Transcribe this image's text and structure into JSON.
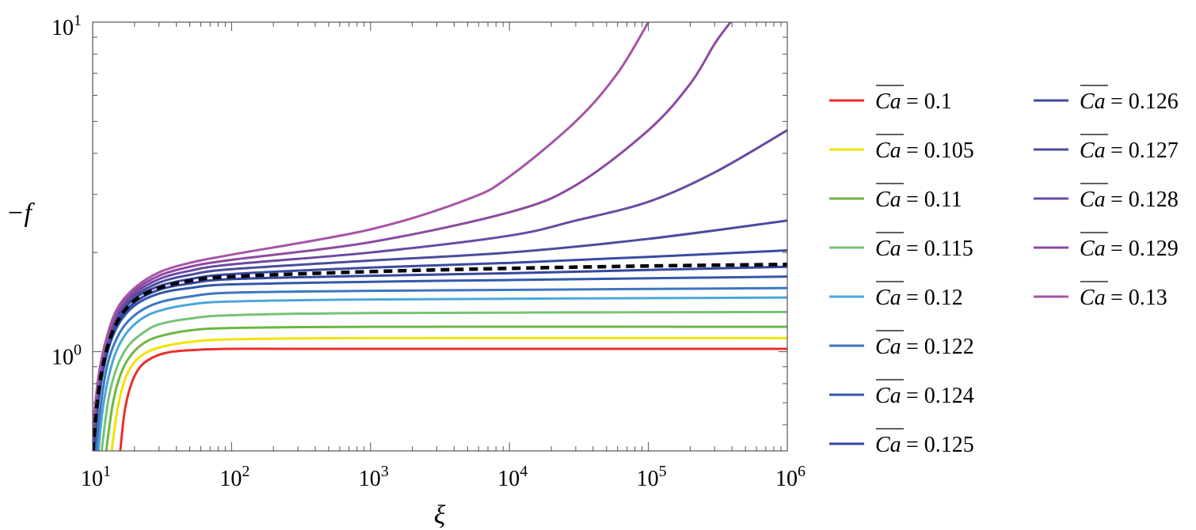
{
  "chart_data": {
    "type": "line",
    "title": "",
    "xlabel": "ξ",
    "ylabel": "−f",
    "xscale": "log",
    "yscale": "log",
    "xlim": [
      10,
      1000000
    ],
    "ylim": [
      0.5,
      10
    ],
    "x_ticks": [
      {
        "value": 10,
        "base": "10",
        "exp": "1"
      },
      {
        "value": 100,
        "base": "10",
        "exp": "2"
      },
      {
        "value": 1000,
        "base": "10",
        "exp": "3"
      },
      {
        "value": 10000,
        "base": "10",
        "exp": "4"
      },
      {
        "value": 100000,
        "base": "10",
        "exp": "5"
      },
      {
        "value": 1000000,
        "base": "10",
        "exp": "6"
      }
    ],
    "y_ticks": [
      {
        "value": 1,
        "base": "10",
        "exp": "0"
      },
      {
        "value": 10,
        "base": "10",
        "exp": "1"
      }
    ],
    "grid": false,
    "legend_position": "right",
    "legend_prefix": "Ca",
    "legend_equals": " = ",
    "series": [
      {
        "name": "0.1",
        "color": "#e8302a",
        "dashed": false,
        "x": [
          15.8,
          17,
          19,
          22,
          27,
          35,
          50,
          100,
          1000,
          1000000
        ],
        "y": [
          0.5,
          0.66,
          0.8,
          0.9,
          0.96,
          0.995,
          1.01,
          1.02,
          1.02,
          1.02
        ]
      },
      {
        "name": "0.105",
        "color": "#f2e300",
        "dashed": false,
        "x": [
          13.7,
          15,
          17,
          20,
          25,
          33,
          50,
          100,
          1000,
          1000000
        ],
        "y": [
          0.5,
          0.66,
          0.82,
          0.93,
          1.0,
          1.04,
          1.07,
          1.09,
          1.1,
          1.1
        ]
      },
      {
        "name": "0.11",
        "color": "#6bb742",
        "dashed": false,
        "x": [
          12.5,
          14,
          16,
          19,
          24,
          32,
          50,
          100,
          1000,
          1000000
        ],
        "y": [
          0.5,
          0.7,
          0.86,
          0.98,
          1.07,
          1.12,
          1.16,
          1.18,
          1.19,
          1.19
        ]
      },
      {
        "name": "0.115",
        "color": "#76c374",
        "dashed": false,
        "x": [
          11.6,
          13,
          15,
          18,
          23,
          30,
          50,
          100,
          1000,
          1000000
        ],
        "y": [
          0.5,
          0.72,
          0.9,
          1.04,
          1.14,
          1.21,
          1.26,
          1.29,
          1.31,
          1.32
        ]
      },
      {
        "name": "0.12",
        "color": "#4aa6dc",
        "dashed": false,
        "x": [
          11,
          12,
          14,
          17,
          22,
          30,
          50,
          100,
          1000,
          1000000
        ],
        "y": [
          0.5,
          0.7,
          0.94,
          1.12,
          1.25,
          1.33,
          1.39,
          1.42,
          1.44,
          1.46
        ]
      },
      {
        "name": "0.122",
        "color": "#3c76c0",
        "dashed": false,
        "x": [
          10.6,
          11.5,
          13,
          16,
          21,
          30,
          50,
          100,
          1000,
          10000,
          100000,
          1000000
        ],
        "y": [
          0.5,
          0.7,
          0.94,
          1.16,
          1.31,
          1.41,
          1.47,
          1.51,
          1.53,
          1.54,
          1.55,
          1.56
        ]
      },
      {
        "name": "0.124",
        "color": "#3158aa",
        "dashed": false,
        "x": [
          10.3,
          11,
          12.5,
          15,
          20,
          30,
          50,
          100,
          1000,
          10000,
          100000,
          1000000
        ],
        "y": [
          0.5,
          0.7,
          0.96,
          1.19,
          1.38,
          1.5,
          1.56,
          1.6,
          1.63,
          1.65,
          1.67,
          1.69
        ]
      },
      {
        "name": "0.125",
        "color": "#35469e",
        "dashed": false,
        "x": [
          10.1,
          11,
          12.5,
          15,
          20,
          30,
          50,
          100,
          1000,
          10000,
          100000,
          1000000
        ],
        "y": [
          0.5,
          0.74,
          0.99,
          1.22,
          1.41,
          1.54,
          1.61,
          1.66,
          1.7,
          1.73,
          1.77,
          1.81
        ]
      },
      {
        "name": "0.126",
        "color": "#3b4aa0",
        "dashed": false,
        "x": [
          10,
          11,
          12.5,
          15,
          20,
          30,
          50,
          100,
          1000,
          10000,
          100000,
          1000000
        ],
        "y": [
          0.5,
          0.76,
          1.01,
          1.25,
          1.45,
          1.58,
          1.66,
          1.72,
          1.8,
          1.86,
          1.94,
          2.03
        ]
      },
      {
        "name": "0.127",
        "color": "#4b4c9d",
        "dashed": false,
        "x": [
          10,
          11,
          12.5,
          15,
          20,
          30,
          50,
          100,
          1000,
          10000,
          100000,
          1000000
        ],
        "y": [
          0.52,
          0.78,
          1.03,
          1.27,
          1.47,
          1.62,
          1.71,
          1.78,
          1.89,
          2.0,
          2.2,
          2.5
        ]
      },
      {
        "name": "0.128",
        "color": "#6a4aa2",
        "dashed": false,
        "x": [
          10,
          11,
          12.5,
          15,
          20,
          30,
          50,
          100,
          1000,
          10000,
          30000,
          100000,
          300000,
          1000000
        ],
        "y": [
          0.54,
          0.8,
          1.05,
          1.3,
          1.5,
          1.66,
          1.76,
          1.84,
          2.0,
          2.25,
          2.5,
          2.85,
          3.5,
          4.7
        ]
      },
      {
        "name": "0.129",
        "color": "#8d4a9f",
        "dashed": false,
        "x": [
          10,
          11,
          12.5,
          15,
          20,
          30,
          50,
          100,
          1000,
          10000,
          30000,
          100000,
          200000,
          300000,
          390000
        ],
        "y": [
          0.56,
          0.82,
          1.07,
          1.32,
          1.53,
          1.7,
          1.81,
          1.9,
          2.15,
          2.65,
          3.2,
          4.7,
          6.5,
          8.6,
          10
        ]
      },
      {
        "name": "0.13",
        "color": "#a655a6",
        "dashed": false,
        "x": [
          10,
          11,
          12.5,
          15,
          20,
          30,
          50,
          100,
          1000,
          5000,
          10000,
          30000,
          60000,
          100000
        ],
        "y": [
          0.58,
          0.84,
          1.09,
          1.35,
          1.56,
          1.74,
          1.86,
          1.97,
          2.35,
          2.9,
          3.4,
          5.0,
          7.0,
          10
        ]
      },
      {
        "name": "",
        "color": "#000000",
        "dashed": true,
        "x": [
          10,
          11,
          12.5,
          15,
          20,
          30,
          50,
          100,
          1000,
          10000,
          100000,
          1000000
        ],
        "y": [
          0.5,
          0.75,
          1.0,
          1.23,
          1.43,
          1.56,
          1.64,
          1.69,
          1.75,
          1.79,
          1.82,
          1.84
        ]
      }
    ]
  }
}
